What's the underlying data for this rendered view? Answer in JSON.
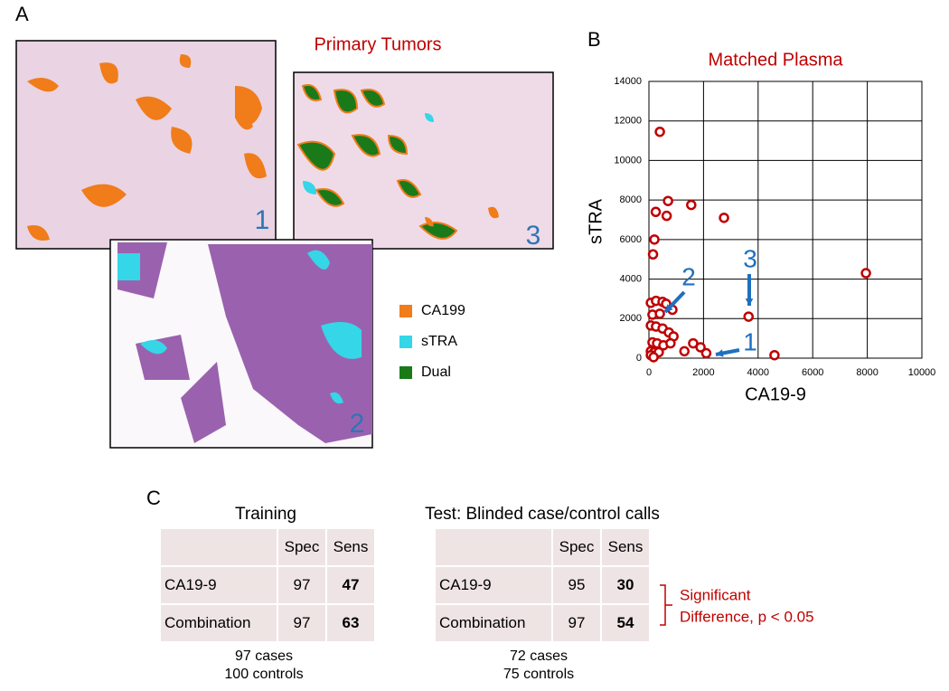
{
  "panel_a": {
    "label": "A",
    "title": "Primary Tumors",
    "image_numbers": [
      "1",
      "2",
      "3"
    ],
    "legend": [
      "CA199",
      "sTRA",
      "Dual"
    ]
  },
  "panel_b": {
    "label": "B"
  },
  "chart_data": {
    "type": "scatter",
    "title": "Matched Plasma",
    "xlabel": "CA19-9",
    "ylabel": "sTRA",
    "color": "#c00000",
    "x": [
      400,
      250,
      700,
      650,
      1550,
      2750,
      200,
      150,
      7950,
      3650,
      4600,
      70,
      260,
      500,
      630,
      130,
      400,
      70,
      260,
      500,
      730,
      900,
      860,
      130,
      300,
      530,
      790,
      70,
      200,
      360,
      1300,
      1620,
      1890,
      2100,
      70,
      170
    ],
    "values": [
      11450,
      7400,
      7950,
      7200,
      7750,
      7100,
      6000,
      5250,
      4300,
      2100,
      150,
      2800,
      2900,
      2850,
      2750,
      2200,
      2250,
      1650,
      1600,
      1500,
      1300,
      1100,
      2450,
      800,
      750,
      650,
      750,
      350,
      300,
      300,
      350,
      750,
      550,
      250,
      150,
      50
    ],
    "xlim": [
      0,
      10000
    ],
    "xticks": [
      0,
      2000,
      4000,
      6000,
      8000,
      10000
    ],
    "ylim": [
      0,
      14000
    ],
    "yticks": [
      0,
      2000,
      4000,
      6000,
      8000,
      10000,
      12000,
      14000
    ],
    "grid": true,
    "annotations": [
      "1",
      "2",
      "3"
    ]
  },
  "panel_c": {
    "label": "C",
    "training": {
      "title": "Training",
      "header": [
        "Spec",
        "Sens"
      ],
      "rows": [
        [
          "CA19-9",
          "97",
          "47"
        ],
        [
          "Combination",
          "97",
          "63"
        ]
      ],
      "notes": [
        "97 cases",
        "100 controls"
      ]
    },
    "test": {
      "title": "Test: Blinded case/control calls",
      "header": [
        "Spec",
        "Sens"
      ],
      "rows": [
        [
          "CA19-9",
          "95",
          "30"
        ],
        [
          "Combination",
          "97",
          "54"
        ]
      ],
      "notes": [
        "72 cases",
        "75 controls"
      ]
    },
    "significance": [
      "Significant",
      "Difference, p < 0.05"
    ]
  }
}
